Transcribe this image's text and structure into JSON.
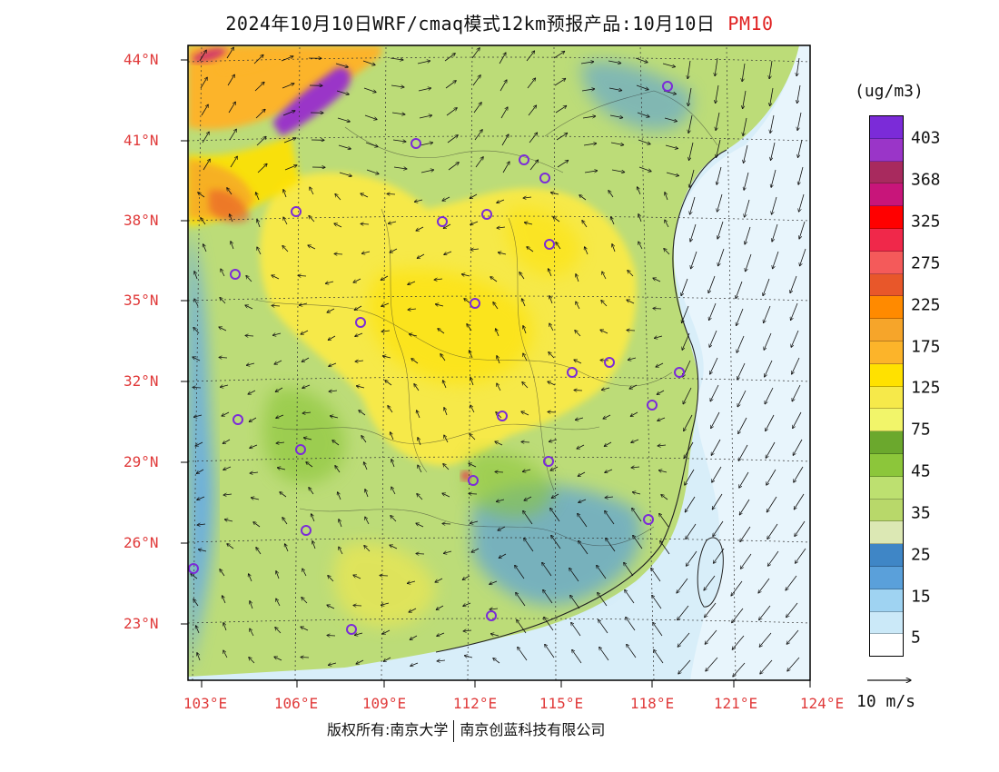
{
  "title": {
    "main": "2024年10月10日WRF/cmaq模式12km预报产品:10月10日",
    "species": "PM10",
    "species_color": "#e02020"
  },
  "axes": {
    "lat_labels": [
      "44°N",
      "41°N",
      "38°N",
      "35°N",
      "32°N",
      "29°N",
      "26°N",
      "23°N"
    ],
    "lon_labels": [
      "103°E",
      "106°E",
      "109°E",
      "112°E",
      "115°E",
      "118°E",
      "121°E",
      "124°E"
    ],
    "label_color": "#e03a3a"
  },
  "legend": {
    "units": "(ug/m3)",
    "labels": [
      "403",
      "368",
      "325",
      "275",
      "225",
      "175",
      "125",
      "75",
      "45",
      "35",
      "25",
      "15",
      "5"
    ],
    "colors_top_to_bottom": [
      "#7b2bd8",
      "#9a35c8",
      "#a82a5e",
      "#c8157a",
      "#ff0000",
      "#f0284a",
      "#f45a5a",
      "#e8572a",
      "#ff8a00",
      "#f6a52a",
      "#fcb42a",
      "#ffe100",
      "#f6e94a",
      "#f2f56a",
      "#6ba82d",
      "#8cc63a",
      "#bde070",
      "#b8d86a",
      "#dce8b4",
      "#3f86c6",
      "#5aa0da",
      "#9fd3f2",
      "#cbe9f8",
      "#ffffff"
    ],
    "wind_reference_label": "10 m/s"
  },
  "footer": {
    "copyright": "版权所有:南京大学",
    "company": "南京创蓝科技有限公司"
  },
  "stations_count": 25
}
